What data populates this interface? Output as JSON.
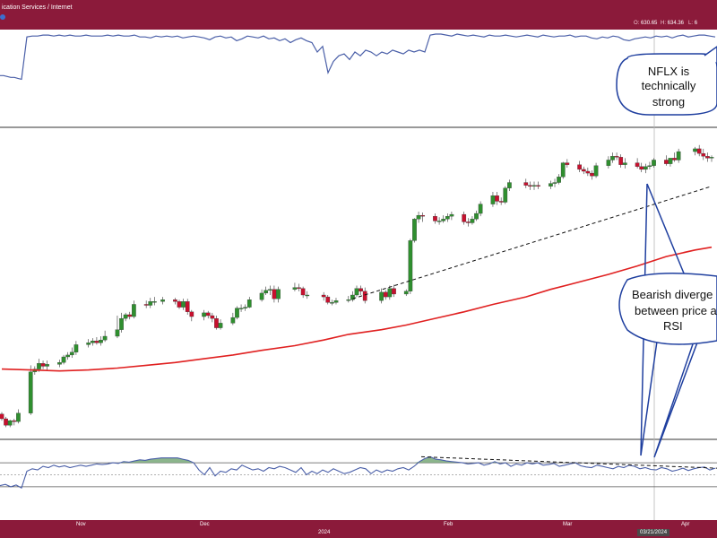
{
  "header": {
    "title": "ication Services / Internet",
    "ohlc": [
      {
        "key": "O:",
        "value": "630.65"
      },
      {
        "key": "H:",
        "value": "634.36"
      },
      {
        "key": "L:",
        "value": "6"
      }
    ]
  },
  "x_axis": {
    "months": [
      "Nov",
      "Dec",
      "Feb",
      "Mar",
      "Apr"
    ],
    "year_label": "2024",
    "crosshair_date": "03/21/2024"
  },
  "annotations": {
    "strong": [
      "NFLX is",
      "technically",
      "strong"
    ],
    "divergence": [
      "Bearish diverge",
      "between price a",
      "RSI"
    ]
  },
  "colors": {
    "header_bg": "#8b1a3a",
    "up_candle": "#2f8f2f",
    "down_candle": "#c8102e",
    "moving_average": "#e02020",
    "indicator_line": "#4a5fa8",
    "rsi_fill": "#78a878"
  },
  "chart_data": [
    {
      "type": "line",
      "panel": "upper indicator",
      "note": "unlabeled indicator line, relative scale 0-100",
      "x": [
        0,
        4,
        8,
        12,
        16,
        20,
        24,
        30,
        36,
        42,
        48,
        54,
        60,
        66,
        72,
        78,
        84,
        90,
        96,
        102,
        108,
        114,
        120,
        126,
        132,
        138,
        144,
        150,
        156,
        162,
        168,
        174,
        180,
        186,
        192,
        198,
        204,
        210,
        216,
        222,
        228,
        234,
        240,
        246,
        252,
        258,
        264,
        270,
        276,
        282,
        288,
        294,
        300,
        306,
        312,
        318,
        324,
        330,
        336,
        342,
        348,
        354,
        360,
        366,
        372,
        378,
        384,
        390,
        396,
        402,
        408,
        414,
        420,
        426,
        432,
        438,
        444,
        450,
        456,
        462,
        468,
        474,
        480,
        486,
        492,
        498,
        504,
        510,
        516,
        522,
        528,
        534,
        540,
        546,
        552,
        558,
        564,
        570,
        576,
        582,
        588,
        594,
        600,
        606,
        612,
        618,
        624,
        630,
        636,
        642,
        648,
        654,
        660,
        666,
        672,
        678,
        684,
        690,
        696,
        702,
        708,
        714,
        720,
        726,
        732,
        738,
        744,
        750,
        756,
        762,
        768,
        774,
        780,
        786,
        792,
        798
      ],
      "values": [
        55,
        55,
        54,
        53,
        53,
        52,
        51,
        96,
        97,
        97,
        98,
        98,
        97,
        98,
        97,
        98,
        97,
        97,
        98,
        97,
        97,
        97,
        98,
        97,
        98,
        97,
        97,
        98,
        96,
        96,
        95,
        97,
        96,
        97,
        96,
        97,
        95,
        96,
        97,
        96,
        95,
        93,
        96,
        97,
        95,
        96,
        92,
        94,
        97,
        96,
        95,
        97,
        94,
        95,
        92,
        94,
        90,
        93,
        95,
        92,
        90,
        80,
        86,
        58,
        70,
        76,
        78,
        72,
        80,
        76,
        82,
        80,
        76,
        80,
        78,
        82,
        80,
        78,
        82,
        80,
        82,
        80,
        98,
        99,
        99,
        98,
        97,
        99,
        98,
        97,
        98,
        97,
        96,
        98,
        97,
        97,
        98,
        97,
        96,
        97,
        98,
        97,
        96,
        98,
        97,
        96,
        97,
        97,
        98,
        96,
        97,
        97,
        95,
        94,
        96,
        95,
        97,
        96,
        93,
        92,
        94,
        95,
        96,
        95,
        97,
        96,
        97,
        95,
        97,
        98,
        96,
        97,
        98,
        98,
        97,
        96
      ],
      "ylim": [
        0,
        100
      ]
    },
    {
      "type": "candlestick",
      "panel": "price",
      "note": "daily candles, Oct 2023 - Apr 2024, values read approximately from the chart",
      "x": [
        "2023-10-16",
        "2023-10-17",
        "2023-10-18",
        "2023-10-19",
        "2023-10-20",
        "2023-10-23",
        "2023-10-24",
        "2023-10-25",
        "2023-10-26",
        "2023-10-27",
        "2023-10-30",
        "2023-10-31",
        "2023-11-01",
        "2023-11-02",
        "2023-11-03",
        "2023-11-06",
        "2023-11-07",
        "2023-11-08",
        "2023-11-09",
        "2023-11-10",
        "2023-11-13",
        "2023-11-14",
        "2023-11-15",
        "2023-11-16",
        "2023-11-17",
        "2023-11-20",
        "2023-11-21",
        "2023-11-22",
        "2023-11-24",
        "2023-11-27",
        "2023-11-28",
        "2023-11-29",
        "2023-11-30",
        "2023-12-01",
        "2023-12-04",
        "2023-12-05",
        "2023-12-06",
        "2023-12-07",
        "2023-12-08",
        "2023-12-11",
        "2023-12-12",
        "2023-12-13",
        "2023-12-14",
        "2023-12-15",
        "2023-12-18",
        "2023-12-19",
        "2023-12-20",
        "2023-12-21",
        "2023-12-22",
        "2023-12-26",
        "2023-12-27",
        "2023-12-28",
        "2023-12-29",
        "2024-01-02",
        "2024-01-03",
        "2024-01-04",
        "2024-01-05",
        "2024-01-08",
        "2024-01-09",
        "2024-01-10",
        "2024-01-11",
        "2024-01-12",
        "2024-01-16",
        "2024-01-17",
        "2024-01-18",
        "2024-01-19",
        "2024-01-22",
        "2024-01-23",
        "2024-01-24",
        "2024-01-25",
        "2024-01-26",
        "2024-01-29",
        "2024-01-30",
        "2024-01-31",
        "2024-02-01",
        "2024-02-02",
        "2024-02-05",
        "2024-02-06",
        "2024-02-07",
        "2024-02-08",
        "2024-02-09",
        "2024-02-12",
        "2024-02-13",
        "2024-02-14",
        "2024-02-15",
        "2024-02-16",
        "2024-02-20",
        "2024-02-21",
        "2024-02-22",
        "2024-02-23",
        "2024-02-26",
        "2024-02-27",
        "2024-02-28",
        "2024-02-29",
        "2024-03-01",
        "2024-03-04",
        "2024-03-05",
        "2024-03-06",
        "2024-03-07",
        "2024-03-08",
        "2024-03-11",
        "2024-03-12",
        "2024-03-13",
        "2024-03-14",
        "2024-03-15",
        "2024-03-18",
        "2024-03-19",
        "2024-03-20",
        "2024-03-21",
        "2024-03-22",
        "2024-03-25",
        "2024-03-26",
        "2024-03-27",
        "2024-03-28",
        "2024-04-01",
        "2024-04-02",
        "2024-04-03",
        "2024-04-04",
        "2024-04-05"
      ],
      "open": [
        357,
        352,
        345,
        350,
        349,
        358,
        402,
        405,
        411,
        408,
        410,
        412,
        418,
        420,
        423,
        431,
        433,
        435,
        433,
        436,
        440,
        447,
        459,
        463,
        461,
        474,
        473,
        477,
        477,
        479,
        477,
        471,
        477,
        466,
        461,
        465,
        462,
        459,
        449,
        454,
        460,
        470,
        470,
        471,
        479,
        486,
        489,
        490,
        480,
        490,
        492,
        491,
        484,
        484,
        482,
        476,
        476,
        478,
        479,
        484,
        491,
        488,
        478,
        487,
        482,
        491,
        485,
        488,
        542,
        565,
        569,
        568,
        563,
        563,
        565,
        568,
        570,
        562,
        561,
        565,
        571,
        581,
        590,
        584,
        583,
        598,
        604,
        601,
        600,
        601,
        600,
        603,
        604,
        610,
        625,
        623,
        618,
        616,
        614,
        611,
        622,
        628,
        632,
        631,
        623,
        625,
        621,
        618,
        621,
        622,
        628,
        624,
        630,
        628,
        637,
        640,
        635,
        632,
        630
      ],
      "high": [
        359,
        354,
        351,
        352,
        362,
        409,
        408,
        416,
        414,
        414,
        415,
        420,
        423,
        428,
        435,
        437,
        438,
        439,
        440,
        446,
        462,
        465,
        465,
        466,
        478,
        478,
        481,
        482,
        482,
        481,
        479,
        480,
        480,
        468,
        468,
        467,
        465,
        462,
        458,
        465,
        472,
        474,
        474,
        482,
        490,
        493,
        494,
        494,
        493,
        497,
        496,
        493,
        488,
        487,
        484,
        479,
        481,
        483,
        488,
        494,
        494,
        492,
        491,
        489,
        494,
        495,
        490,
        544,
        566,
        573,
        572,
        571,
        567,
        569,
        571,
        573,
        573,
        566,
        568,
        574,
        584,
        594,
        594,
        588,
        600,
        607,
        608,
        605,
        605,
        605,
        606,
        608,
        613,
        626,
        629,
        627,
        621,
        620,
        617,
        625,
        632,
        636,
        636,
        634,
        630,
        630,
        625,
        624,
        626,
        630,
        633,
        629,
        636,
        640,
        642,
        644,
        640,
        636,
        633
      ],
      "low": [
        350,
        343,
        343,
        345,
        347,
        356,
        399,
        402,
        405,
        404,
        407,
        410,
        415,
        417,
        420,
        428,
        430,
        431,
        430,
        434,
        438,
        444,
        456,
        458,
        459,
        470,
        470,
        473,
        474,
        474,
        469,
        468,
        463,
        456,
        457,
        459,
        455,
        447,
        447,
        452,
        458,
        466,
        467,
        470,
        477,
        484,
        484,
        476,
        476,
        488,
        488,
        481,
        480,
        478,
        474,
        473,
        474,
        476,
        477,
        482,
        484,
        475,
        475,
        479,
        479,
        482,
        483,
        485,
        540,
        561,
        562,
        560,
        559,
        561,
        562,
        564,
        559,
        557,
        559,
        563,
        568,
        578,
        580,
        580,
        581,
        595,
        598,
        596,
        596,
        597,
        597,
        599,
        602,
        608,
        620,
        615,
        613,
        611,
        607,
        609,
        619,
        625,
        628,
        620,
        619,
        619,
        615,
        614,
        618,
        620,
        622,
        621,
        626,
        625,
        633,
        632,
        628,
        626,
        626
      ],
      "close": [
        352,
        345,
        350,
        349,
        358,
        402,
        405,
        411,
        408,
        410,
        412,
        418,
        420,
        423,
        431,
        433,
        435,
        433,
        436,
        440,
        447,
        459,
        463,
        461,
        474,
        473,
        477,
        477,
        479,
        477,
        471,
        477,
        466,
        461,
        465,
        462,
        459,
        449,
        454,
        460,
        470,
        470,
        471,
        479,
        486,
        489,
        490,
        480,
        490,
        492,
        491,
        484,
        484,
        482,
        476,
        476,
        478,
        479,
        484,
        491,
        488,
        478,
        487,
        482,
        491,
        485,
        488,
        542,
        565,
        569,
        568,
        563,
        563,
        565,
        568,
        570,
        562,
        561,
        565,
        571,
        581,
        590,
        584,
        583,
        598,
        604,
        601,
        600,
        601,
        600,
        603,
        604,
        610,
        625,
        623,
        618,
        616,
        614,
        611,
        622,
        628,
        632,
        631,
        623,
        625,
        621,
        618,
        621,
        622,
        628,
        624,
        630,
        628,
        637,
        640,
        635,
        632,
        630,
        631
      ],
      "ylim": [
        330,
        660
      ]
    },
    {
      "type": "line",
      "panel": "price",
      "name": "",
      "note": "moving average",
      "x": [
        "2023-10-16",
        "2023-10-23",
        "2023-10-30",
        "2023-11-06",
        "2023-11-13",
        "2023-11-20",
        "2023-11-27",
        "2023-12-04",
        "2023-12-11",
        "2023-12-18",
        "2023-12-26",
        "2024-01-02",
        "2024-01-08",
        "2024-01-16",
        "2024-01-22",
        "2024-01-29",
        "2024-02-05",
        "2024-02-12",
        "2024-02-20",
        "2024-02-26",
        "2024-03-04",
        "2024-03-11",
        "2024-03-18",
        "2024-03-25",
        "2024-04-01",
        "2024-04-05"
      ],
      "values": [
        405,
        404,
        403,
        404,
        406,
        409,
        412,
        416,
        420,
        425,
        430,
        436,
        442,
        447,
        452,
        459,
        466,
        474,
        482,
        490,
        498,
        506,
        515,
        525,
        532,
        535
      ],
      "ylim": [
        330,
        660
      ]
    },
    {
      "type": "line",
      "panel": "price",
      "name": "",
      "note": "dashed trendline connecting rising lows",
      "x": [
        "2024-01-09",
        "2024-04-05"
      ],
      "values": [
        480,
        600
      ],
      "ylim": [
        330,
        660
      ]
    },
    {
      "type": "area",
      "panel": "RSI",
      "note": "RSI line with shaded overbought fill above 70",
      "x": [
        0,
        6,
        12,
        18,
        24,
        30,
        36,
        42,
        48,
        54,
        60,
        66,
        72,
        78,
        84,
        90,
        96,
        102,
        108,
        114,
        120,
        126,
        132,
        138,
        144,
        150,
        156,
        162,
        168,
        174,
        180,
        186,
        192,
        198,
        204,
        210,
        216,
        222,
        228,
        234,
        240,
        246,
        252,
        258,
        264,
        270,
        276,
        282,
        288,
        294,
        300,
        306,
        312,
        318,
        324,
        330,
        336,
        342,
        348,
        354,
        360,
        366,
        372,
        378,
        384,
        390,
        396,
        402,
        408,
        414,
        420,
        426,
        432,
        438,
        444,
        450,
        456,
        462,
        468,
        474,
        480,
        486,
        492,
        498,
        504,
        510,
        516,
        522,
        528,
        534,
        540,
        546,
        552,
        558,
        564,
        570,
        576,
        582,
        588,
        594,
        600,
        606,
        612,
        618,
        624,
        630,
        636,
        642,
        648,
        654,
        660,
        666,
        672,
        678,
        684,
        690,
        696,
        702,
        708,
        714,
        720,
        726,
        732,
        738,
        744,
        750,
        756,
        762,
        768,
        774,
        780,
        786,
        792,
        798
      ],
      "values": [
        32,
        34,
        30,
        33,
        28,
        56,
        60,
        58,
        64,
        62,
        66,
        63,
        65,
        62,
        64,
        66,
        64,
        66,
        68,
        67,
        68,
        70,
        69,
        72,
        71,
        73,
        75,
        74,
        76,
        77,
        78,
        78,
        78,
        78,
        76,
        74,
        70,
        58,
        50,
        62,
        48,
        56,
        54,
        60,
        58,
        66,
        62,
        58,
        60,
        56,
        62,
        60,
        64,
        62,
        58,
        54,
        62,
        50,
        56,
        52,
        58,
        54,
        60,
        56,
        52,
        54,
        58,
        62,
        60,
        52,
        58,
        54,
        58,
        56,
        60,
        62,
        58,
        64,
        72,
        77,
        80,
        76,
        75,
        73,
        72,
        71,
        70,
        68,
        69,
        70,
        66,
        68,
        72,
        68,
        70,
        64,
        68,
        66,
        70,
        68,
        70,
        66,
        67,
        69,
        64,
        66,
        68,
        70,
        65,
        63,
        62,
        66,
        64,
        62,
        60,
        64,
        62,
        66,
        64,
        60,
        62,
        59,
        58,
        62,
        60,
        56,
        58,
        61,
        57,
        60,
        62,
        63,
        58,
        61
      ],
      "ylim": [
        0,
        100
      ],
      "reference_lines": [
        70,
        50,
        30
      ]
    },
    {
      "type": "line",
      "panel": "RSI",
      "name": "",
      "note": "dashed trendline along falling RSI peaks",
      "x": [
        470,
        800
      ],
      "values": [
        80,
        61
      ],
      "ylim": [
        0,
        100
      ]
    }
  ]
}
